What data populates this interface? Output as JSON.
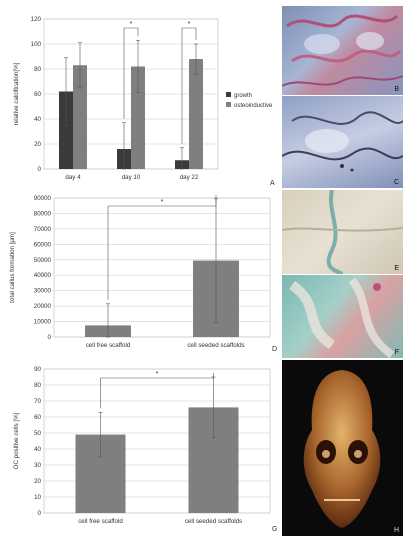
{
  "chart_data": [
    {
      "type": "bar",
      "panel_letter": "A",
      "categories": [
        "day 4",
        "day 10",
        "day 22"
      ],
      "series": [
        {
          "name": "growth",
          "values": [
            62,
            16,
            7
          ],
          "errors": [
            27,
            21,
            10
          ],
          "color": "#3a3a3a"
        },
        {
          "name": "osteoinductive",
          "values": [
            83,
            82,
            88
          ],
          "errors": [
            18,
            21,
            12
          ],
          "color": "#7f7f7f"
        }
      ],
      "ylabel": "relative calcification[%]",
      "ylim": [
        0,
        120
      ],
      "yticks": [
        0,
        20,
        40,
        60,
        80,
        100,
        120
      ],
      "significance": [
        "*",
        "*"
      ],
      "grid": true,
      "legend": "right"
    },
    {
      "type": "bar",
      "panel_letter": "D",
      "categories": [
        "cell free scaffold",
        "cell seeded scaffolds"
      ],
      "values": [
        7500,
        49500
      ],
      "errors": [
        14000,
        40000
      ],
      "ylabel": "total callus formation [µm]",
      "ylim": [
        0,
        90000
      ],
      "yticks": [
        0,
        10000,
        20000,
        30000,
        40000,
        50000,
        60000,
        70000,
        80000,
        90000
      ],
      "significance": [
        "*"
      ],
      "grid": true,
      "color": "#7f7f7f"
    },
    {
      "type": "bar",
      "panel_letter": "G",
      "categories": [
        "cell free scaffold",
        "cell seeded scaffolds"
      ],
      "values": [
        49,
        66
      ],
      "errors": [
        14,
        19
      ],
      "ylabel": "OC positive cells [%]",
      "ylim": [
        0,
        90
      ],
      "yticks": [
        0,
        10,
        20,
        30,
        40,
        50,
        60,
        70,
        80,
        90
      ],
      "significance": [
        "*"
      ],
      "grid": true,
      "color": "#7f7f7f"
    }
  ],
  "image_panels": [
    "B",
    "C",
    "E",
    "F",
    "H"
  ]
}
